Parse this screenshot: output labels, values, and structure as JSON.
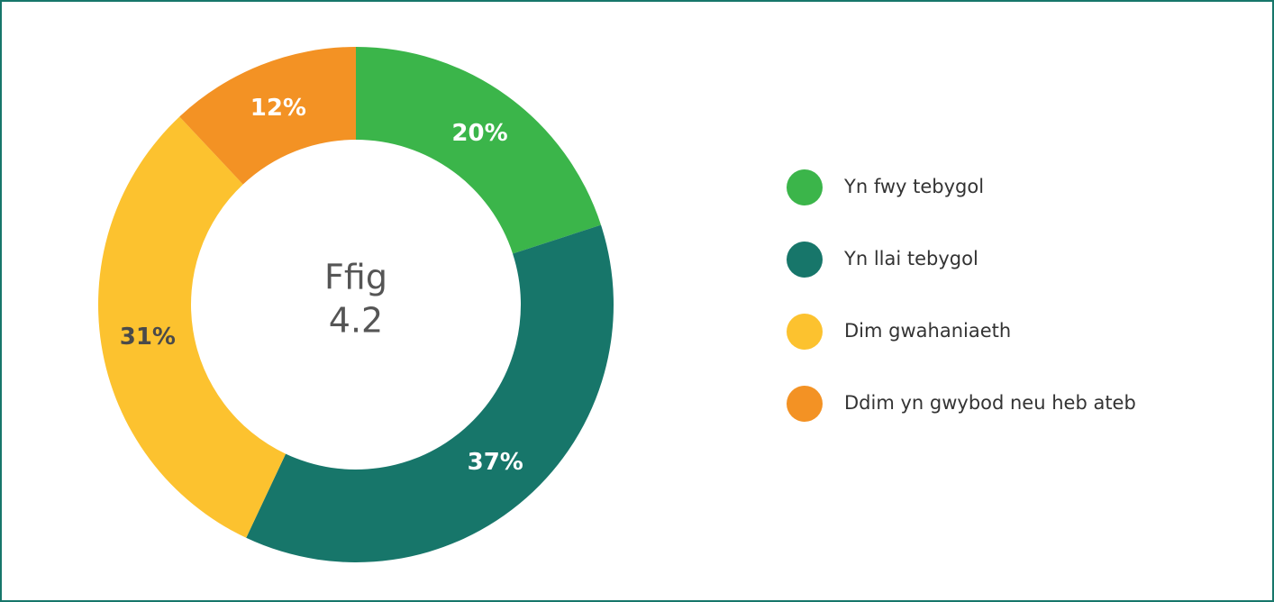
{
  "chart_data": {
    "type": "donut",
    "center_text": [
      "Ffig",
      "4.2"
    ],
    "categories": [
      "Yn fwy tebygol",
      "Yn llai tebygol",
      "Dim gwahaniaeth",
      "Ddim yn gwybod neu heb ateb"
    ],
    "values": [
      20,
      37,
      31,
      12
    ],
    "value_labels": [
      "20%",
      "37%",
      "31%",
      "12%"
    ],
    "colors": [
      "#3bb54a",
      "#17766a",
      "#fcc22f",
      "#f39224"
    ],
    "label_colors": [
      "#ffffff",
      "#ffffff",
      "#4a4a4a",
      "#ffffff"
    ],
    "legend": "right"
  }
}
